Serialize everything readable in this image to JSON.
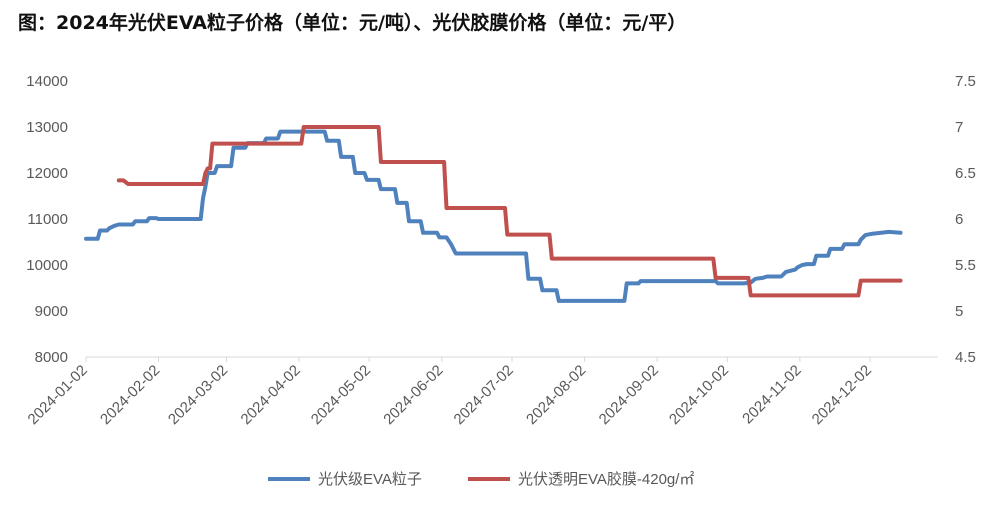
{
  "chart_data": {
    "type": "line",
    "title": "图：2024年光伏EVA粒子价格（单位：元/吨）、光伏胶膜价格（单位：元/平）",
    "x_ticks": [
      "2024-01-02",
      "2024-02-02",
      "2024-03-02",
      "2024-04-02",
      "2024-05-02",
      "2024-06-02",
      "2024-07-02",
      "2024-08-02",
      "2024-09-02",
      "2024-10-02",
      "2024-11-02",
      "2024-12-02"
    ],
    "xlim": [
      "2024-01-02",
      "2024-12-31"
    ],
    "y_left": {
      "min": 8000,
      "max": 14000,
      "ticks": [
        "8000",
        "9000",
        "10000",
        "11000",
        "12000",
        "13000",
        "14000"
      ]
    },
    "y_right": {
      "min": 4.5,
      "max": 7.5,
      "ticks": [
        "4.5",
        "5",
        "5.5",
        "6",
        "6.5",
        "7",
        "7.5"
      ]
    },
    "grid": false,
    "legend_position": "bottom",
    "series": [
      {
        "name": "光伏级EVA粒子",
        "axis": "left",
        "color": "#4F81BD",
        "points": [
          [
            "2024-01-02",
            10570
          ],
          [
            "2024-01-07",
            10570
          ],
          [
            "2024-01-08",
            10750
          ],
          [
            "2024-01-11",
            10750
          ],
          [
            "2024-01-12",
            10800
          ],
          [
            "2024-01-14",
            10850
          ],
          [
            "2024-01-16",
            10880
          ],
          [
            "2024-01-22",
            10880
          ],
          [
            "2024-01-23",
            10950
          ],
          [
            "2024-01-28",
            10950
          ],
          [
            "2024-01-29",
            11020
          ],
          [
            "2024-02-01",
            11020
          ],
          [
            "2024-02-02",
            11000
          ],
          [
            "2024-02-20",
            11000
          ],
          [
            "2024-02-21",
            11450
          ],
          [
            "2024-02-22",
            11700
          ],
          [
            "2024-02-23",
            12000
          ],
          [
            "2024-02-26",
            12000
          ],
          [
            "2024-02-27",
            12150
          ],
          [
            "2024-03-04",
            12150
          ],
          [
            "2024-03-05",
            12550
          ],
          [
            "2024-03-10",
            12550
          ],
          [
            "2024-03-11",
            12650
          ],
          [
            "2024-03-18",
            12650
          ],
          [
            "2024-03-19",
            12750
          ],
          [
            "2024-03-24",
            12750
          ],
          [
            "2024-03-25",
            12900
          ],
          [
            "2024-04-13",
            12900
          ],
          [
            "2024-04-14",
            12700
          ],
          [
            "2024-04-19",
            12700
          ],
          [
            "2024-04-20",
            12350
          ],
          [
            "2024-04-25",
            12350
          ],
          [
            "2024-04-26",
            12000
          ],
          [
            "2024-04-30",
            12000
          ],
          [
            "2024-05-01",
            11850
          ],
          [
            "2024-05-06",
            11850
          ],
          [
            "2024-05-07",
            11650
          ],
          [
            "2024-05-13",
            11650
          ],
          [
            "2024-05-14",
            11350
          ],
          [
            "2024-05-18",
            11350
          ],
          [
            "2024-05-19",
            10950
          ],
          [
            "2024-05-24",
            10950
          ],
          [
            "2024-05-25",
            10700
          ],
          [
            "2024-05-31",
            10700
          ],
          [
            "2024-06-01",
            10600
          ],
          [
            "2024-06-04",
            10600
          ],
          [
            "2024-06-06",
            10450
          ],
          [
            "2024-06-08",
            10250
          ],
          [
            "2024-07-08",
            10250
          ],
          [
            "2024-07-09",
            9700
          ],
          [
            "2024-07-14",
            9700
          ],
          [
            "2024-07-15",
            9450
          ],
          [
            "2024-07-21",
            9450
          ],
          [
            "2024-07-22",
            9220
          ],
          [
            "2024-08-19",
            9220
          ],
          [
            "2024-08-20",
            9600
          ],
          [
            "2024-08-25",
            9600
          ],
          [
            "2024-08-26",
            9650
          ],
          [
            "2024-09-27",
            9650
          ],
          [
            "2024-09-28",
            9600
          ],
          [
            "2024-10-09",
            9600
          ],
          [
            "2024-10-12",
            9620
          ],
          [
            "2024-10-14",
            9700
          ],
          [
            "2024-10-17",
            9720
          ],
          [
            "2024-10-19",
            9750
          ],
          [
            "2024-10-25",
            9750
          ],
          [
            "2024-10-27",
            9850
          ],
          [
            "2024-10-31",
            9900
          ],
          [
            "2024-11-01",
            9950
          ],
          [
            "2024-11-03",
            10000
          ],
          [
            "2024-11-05",
            10020
          ],
          [
            "2024-11-08",
            10020
          ],
          [
            "2024-11-09",
            10200
          ],
          [
            "2024-11-14",
            10200
          ],
          [
            "2024-11-15",
            10350
          ],
          [
            "2024-11-20",
            10350
          ],
          [
            "2024-11-21",
            10450
          ],
          [
            "2024-11-27",
            10450
          ],
          [
            "2024-11-28",
            10550
          ],
          [
            "2024-11-30",
            10650
          ],
          [
            "2024-12-03",
            10680
          ],
          [
            "2024-12-10",
            10720
          ],
          [
            "2024-12-15",
            10700
          ]
        ]
      },
      {
        "name": "光伏透明EVA胶膜-420g/㎡",
        "axis": "right",
        "color": "#C0504D",
        "points": [
          [
            "2024-01-16",
            6.42
          ],
          [
            "2024-01-18",
            6.42
          ],
          [
            "2024-01-20",
            6.38
          ],
          [
            "2024-02-21",
            6.38
          ],
          [
            "2024-02-22",
            6.5
          ],
          [
            "2024-02-23",
            6.55
          ],
          [
            "2024-02-24",
            6.55
          ],
          [
            "2024-02-25",
            6.82
          ],
          [
            "2024-04-03",
            6.82
          ],
          [
            "2024-04-04",
            7.0
          ],
          [
            "2024-05-06",
            7.0
          ],
          [
            "2024-05-07",
            6.62
          ],
          [
            "2024-06-03",
            6.62
          ],
          [
            "2024-06-04",
            6.12
          ],
          [
            "2024-06-29",
            6.12
          ],
          [
            "2024-06-30",
            5.83
          ],
          [
            "2024-07-18",
            5.83
          ],
          [
            "2024-07-19",
            5.57
          ],
          [
            "2024-09-26",
            5.57
          ],
          [
            "2024-09-27",
            5.36
          ],
          [
            "2024-10-11",
            5.36
          ],
          [
            "2024-10-12",
            5.17
          ],
          [
            "2024-11-27",
            5.17
          ],
          [
            "2024-11-28",
            5.33
          ],
          [
            "2024-12-15",
            5.33
          ]
        ]
      }
    ]
  }
}
